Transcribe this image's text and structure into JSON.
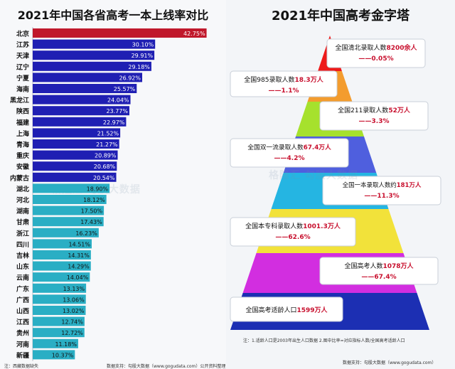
{
  "left_title": "2021年中国各省高考一本上线率对比",
  "right_title": "2021年中国高考金字塔",
  "watermark": "格隆汇 勾股大数据",
  "left_footnote": "注：西藏数据缺失",
  "left_source": "数据支持：勾股大数据（www.gogudata.com）公开资料整理",
  "right_footnote": "注：1.适龄人口是2003年出生人口数据 2.图中比率=对应指标人数/全国高考适龄人口",
  "right_source": "数据支持：勾股大数据（www.gogudata.com）",
  "colors": {
    "top": "#c0182b",
    "high": "#1f1fb3",
    "low": "#2aaec4"
  },
  "chart_data": [
    {
      "type": "bar",
      "orientation": "horizontal",
      "title": "2021年中国各省高考一本上线率对比",
      "unit": "%",
      "xlim": [
        0,
        43
      ],
      "categories": [
        "北京",
        "江苏",
        "天津",
        "辽宁",
        "宁夏",
        "海南",
        "黑龙江",
        "陕西",
        "福建",
        "上海",
        "青海",
        "重庆",
        "安徽",
        "内蒙古",
        "湖北",
        "河北",
        "湖南",
        "甘肃",
        "浙江",
        "四川",
        "吉林",
        "山东",
        "云南",
        "广东",
        "广西",
        "山西",
        "江西",
        "贵州",
        "河南",
        "新疆"
      ],
      "values": [
        42.75,
        30.1,
        29.91,
        29.18,
        26.92,
        25.57,
        24.04,
        23.77,
        22.97,
        21.52,
        21.27,
        20.89,
        20.68,
        20.54,
        18.9,
        18.12,
        17.5,
        17.43,
        16.23,
        14.51,
        14.31,
        14.29,
        14.04,
        13.13,
        13.06,
        13.02,
        12.74,
        12.72,
        11.18,
        10.37
      ],
      "labels": [
        "42.75%",
        "30.10%",
        "29.91%",
        "29.18%",
        "26.92%",
        "25.57%",
        "24.04%",
        "23.77%",
        "22.97%",
        "21.52%",
        "21.27%",
        "20.89%",
        "20.68%",
        "20.54%",
        "18.90%",
        "18.12%",
        "17.50%",
        "17.43%",
        "16.23%",
        "14.51%",
        "14.31%",
        "14.29%",
        "14.04%",
        "13.13%",
        "13.06%",
        "13.02%",
        "12.74%",
        "12.72%",
        "11.18%",
        "10.37%"
      ],
      "groups": [
        "top",
        "high",
        "high",
        "high",
        "high",
        "high",
        "high",
        "high",
        "high",
        "high",
        "high",
        "high",
        "high",
        "high",
        "low",
        "low",
        "low",
        "low",
        "low",
        "low",
        "low",
        "low",
        "low",
        "low",
        "low",
        "low",
        "low",
        "low",
        "low",
        "low"
      ]
    },
    {
      "type": "pyramid",
      "title": "2021年中国高考金字塔",
      "levels": [
        {
          "prefix": "全国清北录取人数",
          "value": "8200",
          "unit": "余人",
          "ratio": "——0.05%",
          "color": "#ee1a1a"
        },
        {
          "prefix": "全国985录取人数",
          "value": "18.3",
          "unit": "万人",
          "ratio": "——1.1%",
          "color": "#f39c2e"
        },
        {
          "prefix": "全国211录取人数",
          "value": "52",
          "unit": "万人",
          "ratio": "——3.3%",
          "color": "#a6e12d"
        },
        {
          "prefix": "全国双一流录取人数",
          "value": "67.4",
          "unit": "万人",
          "ratio": "——4.2%",
          "color": "#4f5fde"
        },
        {
          "prefix": "全国一本录取人数约",
          "value": "181",
          "unit": "万人",
          "ratio": "——11.3%",
          "color": "#25b5e2"
        },
        {
          "prefix": "全国本专科录取人数",
          "value": "1001.3",
          "unit": "万人",
          "ratio": "——62.6%",
          "color": "#f2e23a"
        },
        {
          "prefix": "全国高考人数",
          "value": "1078",
          "unit": "万人",
          "ratio": "——67.4%",
          "color": "#d22ee0"
        },
        {
          "prefix": "全国高考适龄人口",
          "value": "1599",
          "unit": "万人",
          "ratio": "",
          "color": "#1c2fb3"
        }
      ]
    }
  ]
}
